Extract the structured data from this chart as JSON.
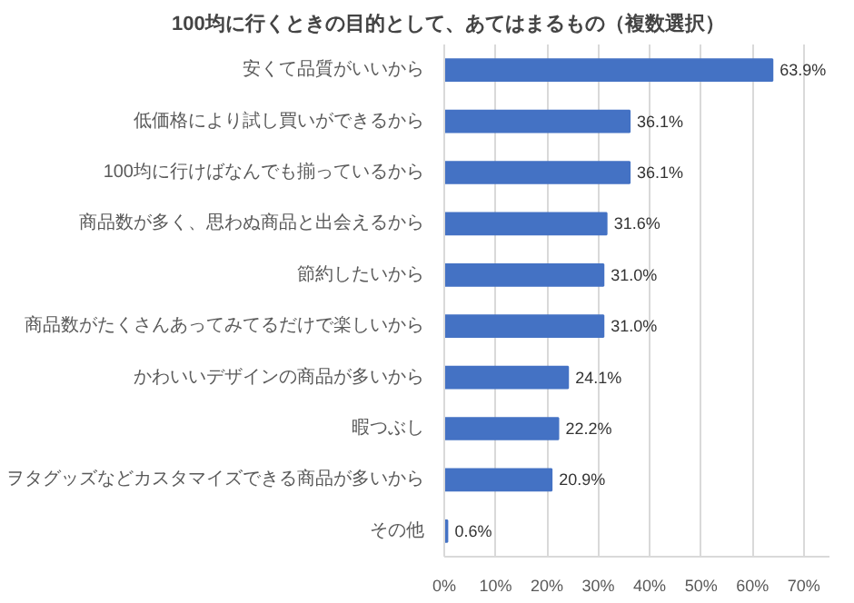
{
  "chart_data": {
    "type": "bar",
    "orientation": "horizontal",
    "title": "100均に行くときの目的として、あてはまるもの（複数選択）",
    "categories": [
      "安くて品質がいいから",
      "低価格により試し買いができるから",
      "100均に行けばなんでも揃っているから",
      "商品数が多く、思わぬ商品と出会えるから",
      "節約したいから",
      "商品数がたくさんあってみてるだけで楽しいから",
      "かわいいデザインの商品が多いから",
      "暇つぶし",
      "ヲタグッズなどカスタマイズできる商品が多いから",
      "その他"
    ],
    "values": [
      63.9,
      36.1,
      36.1,
      31.6,
      31.0,
      31.0,
      24.1,
      22.2,
      20.9,
      0.6
    ],
    "value_labels": [
      "63.9%",
      "36.1%",
      "36.1%",
      "31.6%",
      "31.0%",
      "31.0%",
      "24.1%",
      "22.2%",
      "20.9%",
      "0.6%"
    ],
    "color": "#4472c4",
    "xlim": [
      0,
      75
    ],
    "xticks": [
      {
        "value": 0,
        "label": "0%"
      },
      {
        "value": 10,
        "label": "10%"
      },
      {
        "value": 20,
        "label": "20%"
      },
      {
        "value": 30,
        "label": "30%"
      },
      {
        "value": 40,
        "label": "40%"
      },
      {
        "value": 50,
        "label": "50%"
      },
      {
        "value": 60,
        "label": "60%"
      },
      {
        "value": 70,
        "label": "70%"
      }
    ],
    "grid": "x"
  }
}
